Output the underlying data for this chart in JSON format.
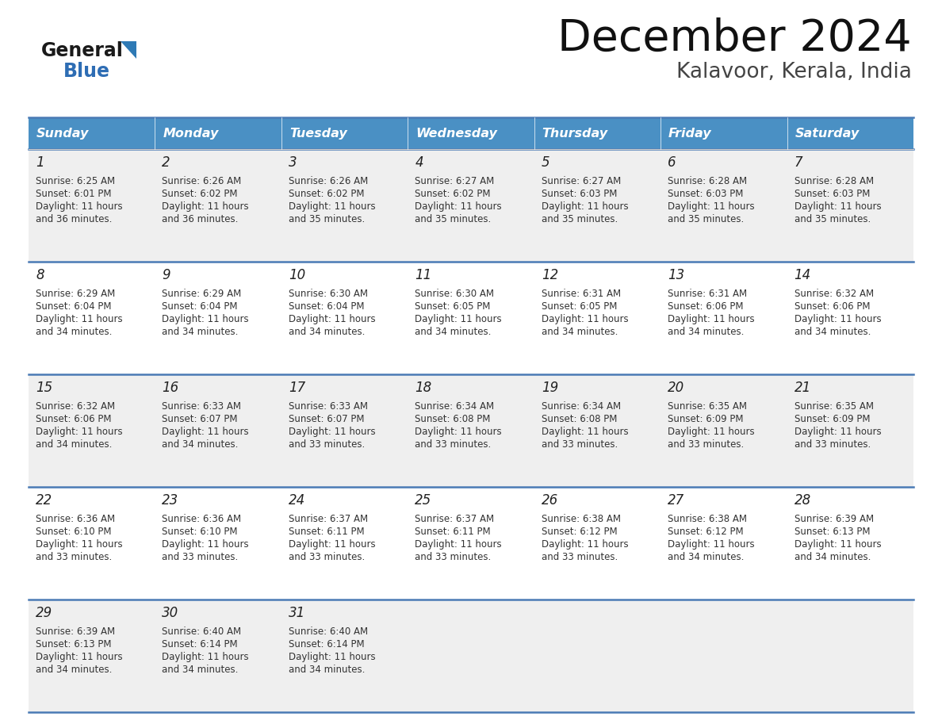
{
  "title": "December 2024",
  "subtitle": "Kalavoor, Kerala, India",
  "header_bg": "#4A90C4",
  "header_text_color": "#FFFFFF",
  "cell_bg_odd": "#EFEFEF",
  "cell_bg_even": "#FFFFFF",
  "border_color": "#4A7AB5",
  "text_color": "#333333",
  "days_of_week": [
    "Sunday",
    "Monday",
    "Tuesday",
    "Wednesday",
    "Thursday",
    "Friday",
    "Saturday"
  ],
  "calendar_data": [
    [
      {
        "day": 1,
        "sunrise": "6:25 AM",
        "sunset": "6:01 PM",
        "daylight_hrs": 11,
        "daylight_min": 36
      },
      {
        "day": 2,
        "sunrise": "6:26 AM",
        "sunset": "6:02 PM",
        "daylight_hrs": 11,
        "daylight_min": 36
      },
      {
        "day": 3,
        "sunrise": "6:26 AM",
        "sunset": "6:02 PM",
        "daylight_hrs": 11,
        "daylight_min": 35
      },
      {
        "day": 4,
        "sunrise": "6:27 AM",
        "sunset": "6:02 PM",
        "daylight_hrs": 11,
        "daylight_min": 35
      },
      {
        "day": 5,
        "sunrise": "6:27 AM",
        "sunset": "6:03 PM",
        "daylight_hrs": 11,
        "daylight_min": 35
      },
      {
        "day": 6,
        "sunrise": "6:28 AM",
        "sunset": "6:03 PM",
        "daylight_hrs": 11,
        "daylight_min": 35
      },
      {
        "day": 7,
        "sunrise": "6:28 AM",
        "sunset": "6:03 PM",
        "daylight_hrs": 11,
        "daylight_min": 35
      }
    ],
    [
      {
        "day": 8,
        "sunrise": "6:29 AM",
        "sunset": "6:04 PM",
        "daylight_hrs": 11,
        "daylight_min": 34
      },
      {
        "day": 9,
        "sunrise": "6:29 AM",
        "sunset": "6:04 PM",
        "daylight_hrs": 11,
        "daylight_min": 34
      },
      {
        "day": 10,
        "sunrise": "6:30 AM",
        "sunset": "6:04 PM",
        "daylight_hrs": 11,
        "daylight_min": 34
      },
      {
        "day": 11,
        "sunrise": "6:30 AM",
        "sunset": "6:05 PM",
        "daylight_hrs": 11,
        "daylight_min": 34
      },
      {
        "day": 12,
        "sunrise": "6:31 AM",
        "sunset": "6:05 PM",
        "daylight_hrs": 11,
        "daylight_min": 34
      },
      {
        "day": 13,
        "sunrise": "6:31 AM",
        "sunset": "6:06 PM",
        "daylight_hrs": 11,
        "daylight_min": 34
      },
      {
        "day": 14,
        "sunrise": "6:32 AM",
        "sunset": "6:06 PM",
        "daylight_hrs": 11,
        "daylight_min": 34
      }
    ],
    [
      {
        "day": 15,
        "sunrise": "6:32 AM",
        "sunset": "6:06 PM",
        "daylight_hrs": 11,
        "daylight_min": 34
      },
      {
        "day": 16,
        "sunrise": "6:33 AM",
        "sunset": "6:07 PM",
        "daylight_hrs": 11,
        "daylight_min": 34
      },
      {
        "day": 17,
        "sunrise": "6:33 AM",
        "sunset": "6:07 PM",
        "daylight_hrs": 11,
        "daylight_min": 33
      },
      {
        "day": 18,
        "sunrise": "6:34 AM",
        "sunset": "6:08 PM",
        "daylight_hrs": 11,
        "daylight_min": 33
      },
      {
        "day": 19,
        "sunrise": "6:34 AM",
        "sunset": "6:08 PM",
        "daylight_hrs": 11,
        "daylight_min": 33
      },
      {
        "day": 20,
        "sunrise": "6:35 AM",
        "sunset": "6:09 PM",
        "daylight_hrs": 11,
        "daylight_min": 33
      },
      {
        "day": 21,
        "sunrise": "6:35 AM",
        "sunset": "6:09 PM",
        "daylight_hrs": 11,
        "daylight_min": 33
      }
    ],
    [
      {
        "day": 22,
        "sunrise": "6:36 AM",
        "sunset": "6:10 PM",
        "daylight_hrs": 11,
        "daylight_min": 33
      },
      {
        "day": 23,
        "sunrise": "6:36 AM",
        "sunset": "6:10 PM",
        "daylight_hrs": 11,
        "daylight_min": 33
      },
      {
        "day": 24,
        "sunrise": "6:37 AM",
        "sunset": "6:11 PM",
        "daylight_hrs": 11,
        "daylight_min": 33
      },
      {
        "day": 25,
        "sunrise": "6:37 AM",
        "sunset": "6:11 PM",
        "daylight_hrs": 11,
        "daylight_min": 33
      },
      {
        "day": 26,
        "sunrise": "6:38 AM",
        "sunset": "6:12 PM",
        "daylight_hrs": 11,
        "daylight_min": 33
      },
      {
        "day": 27,
        "sunrise": "6:38 AM",
        "sunset": "6:12 PM",
        "daylight_hrs": 11,
        "daylight_min": 34
      },
      {
        "day": 28,
        "sunrise": "6:39 AM",
        "sunset": "6:13 PM",
        "daylight_hrs": 11,
        "daylight_min": 34
      }
    ],
    [
      {
        "day": 29,
        "sunrise": "6:39 AM",
        "sunset": "6:13 PM",
        "daylight_hrs": 11,
        "daylight_min": 34
      },
      {
        "day": 30,
        "sunrise": "6:40 AM",
        "sunset": "6:14 PM",
        "daylight_hrs": 11,
        "daylight_min": 34
      },
      {
        "day": 31,
        "sunrise": "6:40 AM",
        "sunset": "6:14 PM",
        "daylight_hrs": 11,
        "daylight_min": 34
      },
      null,
      null,
      null,
      null
    ]
  ],
  "logo_general_color": "#1a1a1a",
  "logo_blue_color": "#2E6DB4",
  "logo_triangle_color": "#2E7AB5",
  "fig_width": 11.88,
  "fig_height": 9.18,
  "dpi": 100
}
